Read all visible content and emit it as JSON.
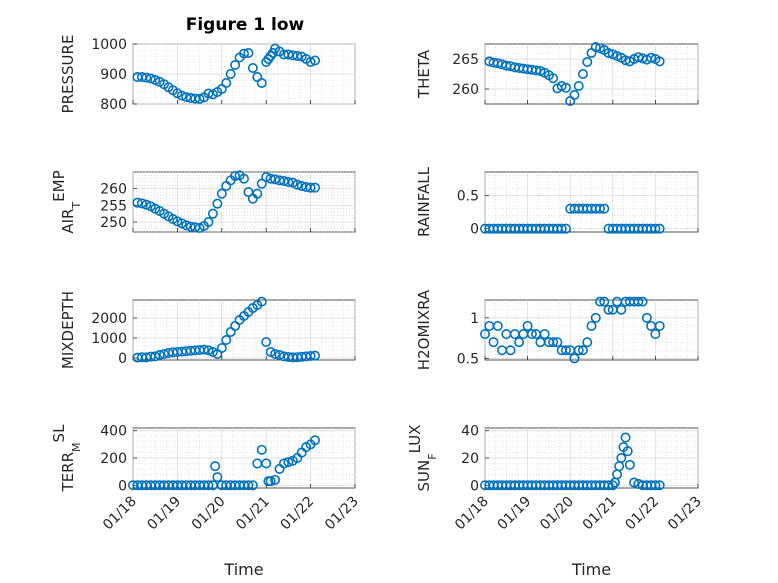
{
  "figure": {
    "title": "Figure 1 low"
  },
  "chart_data": [
    {
      "type": "scatter",
      "ylabel": "PRESSURE",
      "xlabel": "",
      "ylim": [
        800,
        1000
      ],
      "yticks": [
        "800",
        "900",
        "1000"
      ],
      "xticks": [
        "01/18",
        "01/19",
        "01/20",
        "01/21",
        "01/22",
        "01/23"
      ],
      "xlim": [
        18,
        23
      ],
      "grid": true,
      "marker": "o",
      "color": "#0072BD",
      "x": [
        18.1,
        18.2,
        18.3,
        18.4,
        18.5,
        18.6,
        18.7,
        18.8,
        18.9,
        19.0,
        19.1,
        19.2,
        19.3,
        19.4,
        19.5,
        19.6,
        19.7,
        19.8,
        19.9,
        20.0,
        20.1,
        20.2,
        20.3,
        20.4,
        20.5,
        20.6,
        20.7,
        20.8,
        20.9,
        21.0,
        21.05,
        21.1,
        21.15,
        21.2,
        21.3,
        21.4,
        21.5,
        21.6,
        21.7,
        21.8,
        21.9,
        22.0,
        22.1
      ],
      "y": [
        890,
        890,
        888,
        885,
        880,
        874,
        866,
        856,
        846,
        836,
        828,
        823,
        820,
        818,
        817,
        822,
        835,
        832,
        840,
        850,
        870,
        900,
        930,
        955,
        968,
        970,
        920,
        890,
        870,
        940,
        950,
        960,
        970,
        985,
        975,
        965,
        965,
        962,
        960,
        958,
        950,
        940,
        945
      ]
    },
    {
      "type": "scatter",
      "ylabel": "THETA",
      "xlabel": "",
      "ylim": [
        257.5,
        267.5
      ],
      "yticks": [
        "260",
        "265"
      ],
      "xticks": [
        "01/18",
        "01/19",
        "01/20",
        "01/21",
        "01/22",
        "01/23"
      ],
      "xlim": [
        18,
        23
      ],
      "grid": true,
      "marker": "o",
      "color": "#0072BD",
      "x": [
        18.1,
        18.2,
        18.3,
        18.4,
        18.5,
        18.6,
        18.7,
        18.8,
        18.9,
        19.0,
        19.1,
        19.2,
        19.3,
        19.4,
        19.5,
        19.6,
        19.7,
        19.8,
        19.9,
        20.0,
        20.1,
        20.2,
        20.3,
        20.4,
        20.5,
        20.6,
        20.7,
        20.8,
        20.9,
        21.0,
        21.1,
        21.2,
        21.3,
        21.4,
        21.5,
        21.6,
        21.7,
        21.8,
        21.9,
        22.0,
        22.1
      ],
      "y": [
        264.6,
        264.4,
        264.3,
        264.1,
        263.9,
        263.8,
        263.6,
        263.5,
        263.4,
        263.3,
        263.2,
        263.1,
        263.0,
        262.7,
        262.3,
        261.8,
        260.1,
        260.5,
        260.2,
        258.0,
        259.0,
        260.5,
        262.5,
        264.5,
        266.0,
        267.0,
        266.8,
        266.5,
        266.0,
        265.8,
        265.5,
        265.2,
        264.8,
        264.6,
        265.0,
        265.3,
        265.1,
        264.9,
        265.2,
        265.0,
        264.6
      ]
    },
    {
      "type": "scatter",
      "ylabel": "AIR_TEMP",
      "xlabel": "",
      "ylim": [
        247,
        265
      ],
      "yticks": [
        "250",
        "255",
        "260"
      ],
      "xticks": [
        "01/18",
        "01/19",
        "01/20",
        "01/21",
        "01/22",
        "01/23"
      ],
      "xlim": [
        18,
        23
      ],
      "grid": true,
      "marker": "o",
      "color": "#0072BD",
      "x": [
        18.1,
        18.2,
        18.3,
        18.4,
        18.5,
        18.6,
        18.7,
        18.8,
        18.9,
        19.0,
        19.1,
        19.2,
        19.3,
        19.4,
        19.5,
        19.6,
        19.7,
        19.8,
        19.9,
        20.0,
        20.1,
        20.2,
        20.3,
        20.4,
        20.5,
        20.6,
        20.7,
        20.8,
        20.9,
        21.0,
        21.1,
        21.2,
        21.3,
        21.4,
        21.5,
        21.6,
        21.7,
        21.8,
        21.9,
        22.0,
        22.1
      ],
      "y": [
        255.8,
        255.6,
        255.2,
        254.7,
        254.0,
        253.3,
        252.5,
        251.7,
        250.9,
        250.2,
        249.6,
        249.0,
        248.6,
        248.4,
        248.2,
        248.8,
        250.0,
        252.5,
        255.5,
        258.5,
        260.8,
        262.5,
        263.8,
        264.0,
        263.0,
        259.0,
        257.0,
        258.5,
        261.5,
        263.5,
        263.0,
        262.8,
        262.5,
        262.3,
        262.0,
        261.8,
        261.2,
        260.8,
        260.5,
        260.3,
        260.3
      ]
    },
    {
      "type": "scatter",
      "ylabel": "RAINFALL",
      "xlabel": "",
      "ylim": [
        -0.05,
        0.85
      ],
      "yticks": [
        "0",
        "0.5"
      ],
      "xticks": [
        "01/18",
        "01/19",
        "01/20",
        "01/21",
        "01/22",
        "01/23"
      ],
      "xlim": [
        18,
        23
      ],
      "grid": true,
      "marker": "o",
      "color": "#0072BD",
      "x": [
        18.0,
        18.1,
        18.2,
        18.3,
        18.4,
        18.5,
        18.6,
        18.7,
        18.8,
        18.9,
        19.0,
        19.1,
        19.2,
        19.3,
        19.4,
        19.5,
        19.6,
        19.7,
        19.8,
        19.9,
        20.0,
        20.1,
        20.2,
        20.3,
        20.4,
        20.5,
        20.6,
        20.7,
        20.8,
        20.9,
        21.0,
        21.1,
        21.2,
        21.3,
        21.4,
        21.5,
        21.6,
        21.7,
        21.8,
        21.9,
        22.0,
        22.1
      ],
      "y": [
        0,
        0,
        0,
        0,
        0,
        0,
        0,
        0,
        0,
        0,
        0,
        0,
        0,
        0,
        0,
        0,
        0,
        0,
        0,
        0,
        0.3,
        0.3,
        0.3,
        0.3,
        0.3,
        0.3,
        0.3,
        0.3,
        0.3,
        0,
        0,
        0,
        0,
        0,
        0,
        0,
        0,
        0,
        0,
        0,
        0,
        0
      ]
    },
    {
      "type": "scatter",
      "ylabel": "MIXDEPTH",
      "xlabel": "",
      "ylim": [
        -100,
        2900
      ],
      "yticks": [
        "0",
        "1000",
        "2000"
      ],
      "xticks": [
        "01/18",
        "01/19",
        "01/20",
        "01/21",
        "01/22",
        "01/23"
      ],
      "xlim": [
        18,
        23
      ],
      "grid": true,
      "marker": "o",
      "color": "#0072BD",
      "x": [
        18.1,
        18.2,
        18.3,
        18.4,
        18.5,
        18.6,
        18.7,
        18.8,
        18.9,
        19.0,
        19.1,
        19.2,
        19.3,
        19.4,
        19.5,
        19.6,
        19.7,
        19.8,
        19.9,
        20.0,
        20.1,
        20.2,
        20.3,
        20.4,
        20.5,
        20.6,
        20.7,
        20.8,
        20.9,
        21.0,
        21.1,
        21.2,
        21.3,
        21.4,
        21.5,
        21.6,
        21.7,
        21.8,
        21.9,
        22.0,
        22.1
      ],
      "y": [
        20,
        40,
        30,
        70,
        80,
        150,
        200,
        250,
        280,
        300,
        320,
        340,
        360,
        380,
        400,
        420,
        380,
        300,
        200,
        500,
        900,
        1300,
        1600,
        1900,
        2100,
        2300,
        2500,
        2650,
        2820,
        800,
        300,
        200,
        150,
        80,
        50,
        30,
        40,
        60,
        80,
        100,
        120
      ]
    },
    {
      "type": "scatter",
      "ylabel": "H2OMIXRA",
      "xlabel": "",
      "ylim": [
        0.48,
        1.22
      ],
      "yticks": [
        "0.5",
        "1"
      ],
      "xticks": [
        "01/18",
        "01/19",
        "01/20",
        "01/21",
        "01/22",
        "01/23"
      ],
      "xlim": [
        18,
        23
      ],
      "grid": true,
      "marker": "o",
      "color": "#0072BD",
      "x": [
        18.0,
        18.1,
        18.2,
        18.3,
        18.4,
        18.5,
        18.6,
        18.7,
        18.8,
        18.9,
        19.0,
        19.1,
        19.2,
        19.3,
        19.4,
        19.5,
        19.6,
        19.7,
        19.8,
        19.9,
        20.0,
        20.1,
        20.2,
        20.3,
        20.4,
        20.5,
        20.6,
        20.7,
        20.8,
        20.9,
        21.0,
        21.1,
        21.2,
        21.3,
        21.4,
        21.5,
        21.6,
        21.7,
        21.8,
        21.9,
        22.0,
        22.1
      ],
      "y": [
        0.8,
        0.9,
        0.7,
        0.9,
        0.6,
        0.8,
        0.6,
        0.8,
        0.7,
        0.8,
        0.9,
        0.8,
        0.8,
        0.7,
        0.8,
        0.7,
        0.7,
        0.7,
        0.6,
        0.6,
        0.6,
        0.5,
        0.6,
        0.6,
        0.7,
        0.9,
        1.0,
        1.2,
        1.2,
        1.1,
        1.1,
        1.2,
        1.1,
        1.2,
        1.2,
        1.2,
        1.2,
        1.2,
        1.0,
        0.9,
        0.8,
        0.9
      ]
    },
    {
      "type": "scatter",
      "ylabel": "TERR_MSL",
      "xlabel": "Time",
      "ylim": [
        -20,
        420
      ],
      "yticks": [
        "0",
        "200",
        "400"
      ],
      "xticks": [
        "01/18",
        "01/19",
        "01/20",
        "01/21",
        "01/22",
        "01/23"
      ],
      "xlim": [
        18,
        23
      ],
      "grid": true,
      "marker": "o",
      "color": "#0072BD",
      "x": [
        18.0,
        18.1,
        18.2,
        18.3,
        18.4,
        18.5,
        18.6,
        18.7,
        18.8,
        18.9,
        19.0,
        19.1,
        19.2,
        19.3,
        19.4,
        19.5,
        19.6,
        19.7,
        19.8,
        19.85,
        19.9,
        20.0,
        20.1,
        20.2,
        20.3,
        20.4,
        20.5,
        20.6,
        20.7,
        20.8,
        20.9,
        21.0,
        21.05,
        21.1,
        21.2,
        21.3,
        21.4,
        21.5,
        21.6,
        21.7,
        21.8,
        21.9,
        22.0,
        22.1
      ],
      "y": [
        0,
        0,
        0,
        0,
        0,
        0,
        0,
        0,
        0,
        0,
        0,
        0,
        0,
        0,
        0,
        0,
        0,
        0,
        0,
        140,
        60,
        0,
        0,
        0,
        0,
        0,
        0,
        0,
        0,
        160,
        260,
        160,
        30,
        30,
        40,
        120,
        160,
        170,
        180,
        200,
        240,
        280,
        300,
        330
      ]
    },
    {
      "type": "scatter",
      "ylabel": "SUN_FLUX",
      "xlabel": "Time",
      "ylim": [
        -2,
        42
      ],
      "yticks": [
        "0",
        "20",
        "40"
      ],
      "xticks": [
        "01/18",
        "01/19",
        "01/20",
        "01/21",
        "01/22",
        "01/23"
      ],
      "xlim": [
        18,
        23
      ],
      "grid": true,
      "marker": "o",
      "color": "#0072BD",
      "x": [
        18.0,
        18.1,
        18.2,
        18.3,
        18.4,
        18.5,
        18.6,
        18.7,
        18.8,
        18.9,
        19.0,
        19.1,
        19.2,
        19.3,
        19.4,
        19.5,
        19.6,
        19.7,
        19.8,
        19.9,
        20.0,
        20.1,
        20.2,
        20.3,
        20.4,
        20.5,
        20.6,
        20.7,
        20.8,
        20.9,
        21.0,
        21.05,
        21.1,
        21.15,
        21.2,
        21.25,
        21.3,
        21.35,
        21.4,
        21.5,
        21.6,
        21.7,
        21.8,
        21.9,
        22.0,
        22.1
      ],
      "y": [
        0,
        0,
        0,
        0,
        0,
        0,
        0,
        0,
        0,
        0,
        0,
        0,
        0,
        0,
        0,
        0,
        0,
        0,
        0,
        0,
        0,
        0,
        0,
        0,
        0,
        0,
        0,
        0,
        0,
        0,
        0,
        2,
        8,
        14,
        20,
        28,
        35,
        25,
        15,
        2,
        1,
        0,
        0,
        0,
        0,
        0
      ]
    }
  ]
}
